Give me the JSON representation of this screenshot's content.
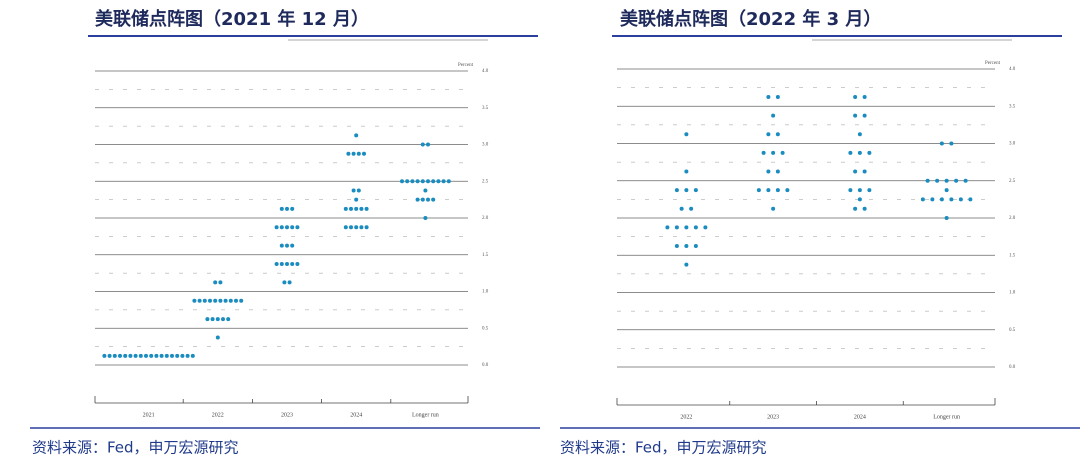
{
  "chart_data": [
    {
      "type": "dot",
      "title": "美联储点阵图（2021 年 12 月）",
      "y_label": "Percent",
      "source": "资料来源：Fed，申万宏源研究",
      "color": "#1a8cc0",
      "categories": [
        "2021",
        "2022",
        "2023",
        "2024",
        "Longer run"
      ],
      "values": [
        [
          0.125,
          0.125,
          0.125,
          0.125,
          0.125,
          0.125,
          0.125,
          0.125,
          0.125,
          0.125,
          0.125,
          0.125,
          0.125,
          0.125,
          0.125,
          0.125,
          0.125,
          0.125
        ],
        [
          0.375,
          0.625,
          0.625,
          0.625,
          0.625,
          0.625,
          0.875,
          0.875,
          0.875,
          0.875,
          0.875,
          0.875,
          0.875,
          0.875,
          0.875,
          0.875,
          1.125,
          1.125
        ],
        [
          1.125,
          1.125,
          1.375,
          1.375,
          1.375,
          1.375,
          1.375,
          1.625,
          1.625,
          1.625,
          1.875,
          1.875,
          1.875,
          1.875,
          1.875,
          2.125,
          2.125,
          2.125
        ],
        [
          1.875,
          1.875,
          1.875,
          1.875,
          1.875,
          2.125,
          2.125,
          2.125,
          2.125,
          2.125,
          2.25,
          2.375,
          2.375,
          2.875,
          2.875,
          2.875,
          2.875,
          3.125
        ],
        [
          2.0,
          2.25,
          2.25,
          2.25,
          2.25,
          2.375,
          2.5,
          2.5,
          2.5,
          2.5,
          2.5,
          2.5,
          2.5,
          2.5,
          2.5,
          2.5,
          3.0,
          3.0
        ]
      ],
      "ylim": [
        0,
        4
      ],
      "yticks": [
        {
          "value": 0,
          "label": "0.0"
        },
        {
          "value": 0.5,
          "label": "0.5"
        },
        {
          "value": 1,
          "label": "1.0"
        },
        {
          "value": 1.5,
          "label": "1.5"
        },
        {
          "value": 2,
          "label": "2.0"
        },
        {
          "value": 2.5,
          "label": "2.5"
        },
        {
          "value": 3,
          "label": "3.0"
        },
        {
          "value": 3.5,
          "label": "3.5"
        },
        {
          "value": 4,
          "label": "4.0"
        }
      ],
      "minor_yticks": [
        0.25,
        0.75,
        1.25,
        1.75,
        2.25,
        2.75,
        3.25,
        3.75
      ]
    },
    {
      "type": "dot",
      "title": "美联储点阵图（2022 年 3 月）",
      "y_label": "Percent",
      "source": "资料来源：Fed，申万宏源研究",
      "color": "#1a8cc0",
      "categories": [
        "2022",
        "2023",
        "2024",
        "Longer run"
      ],
      "values": [
        [
          1.375,
          1.625,
          1.625,
          1.625,
          1.875,
          1.875,
          1.875,
          1.875,
          1.875,
          2.125,
          2.125,
          2.375,
          2.375,
          2.375,
          2.625,
          3.125
        ],
        [
          2.125,
          2.375,
          2.375,
          2.375,
          2.375,
          2.625,
          2.625,
          2.875,
          2.875,
          2.875,
          3.125,
          3.125,
          3.375,
          3.625,
          3.625
        ],
        [
          2.125,
          2.125,
          2.25,
          2.375,
          2.375,
          2.375,
          2.625,
          2.625,
          2.875,
          2.875,
          2.875,
          3.125,
          3.375,
          3.375,
          3.625,
          3.625
        ],
        [
          2.0,
          2.25,
          2.25,
          2.25,
          2.25,
          2.25,
          2.25,
          2.375,
          2.5,
          2.5,
          2.5,
          2.5,
          2.5,
          3.0,
          3.0
        ]
      ],
      "ylim": [
        0,
        4
      ],
      "yticks": [
        {
          "value": 0,
          "label": "0.0"
        },
        {
          "value": 0.5,
          "label": "0.5"
        },
        {
          "value": 1,
          "label": "1.0"
        },
        {
          "value": 1.5,
          "label": "1.5"
        },
        {
          "value": 2,
          "label": "2.0"
        },
        {
          "value": 2.5,
          "label": "2.5"
        },
        {
          "value": 3,
          "label": "3.0"
        },
        {
          "value": 3.5,
          "label": "3.5"
        },
        {
          "value": 4,
          "label": "4.0"
        }
      ],
      "minor_yticks": [
        0.25,
        0.75,
        1.25,
        1.75,
        2.25,
        2.75,
        3.25,
        3.75
      ]
    }
  ]
}
